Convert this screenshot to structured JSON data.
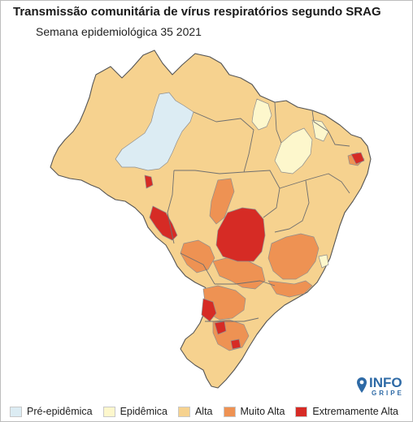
{
  "title": "Transmissão comunitária de vírus respiratórios segundo SRAG",
  "subtitle": "Semana epidemiológica 35 2021",
  "logo": {
    "top": "INFO",
    "bottom": "GRIPE"
  },
  "legend": [
    {
      "label": "Pré-epidêmica",
      "color": "#dcecf3"
    },
    {
      "label": "Epidêmica",
      "color": "#fdf7cc"
    },
    {
      "label": "Alta",
      "color": "#f6d28f"
    },
    {
      "label": "Muito Alta",
      "color": "#ee9253"
    },
    {
      "label": "Extremamente Alta",
      "color": "#d62b25"
    }
  ],
  "colors": {
    "border": "#8a8a8a",
    "outline": "#555555"
  }
}
